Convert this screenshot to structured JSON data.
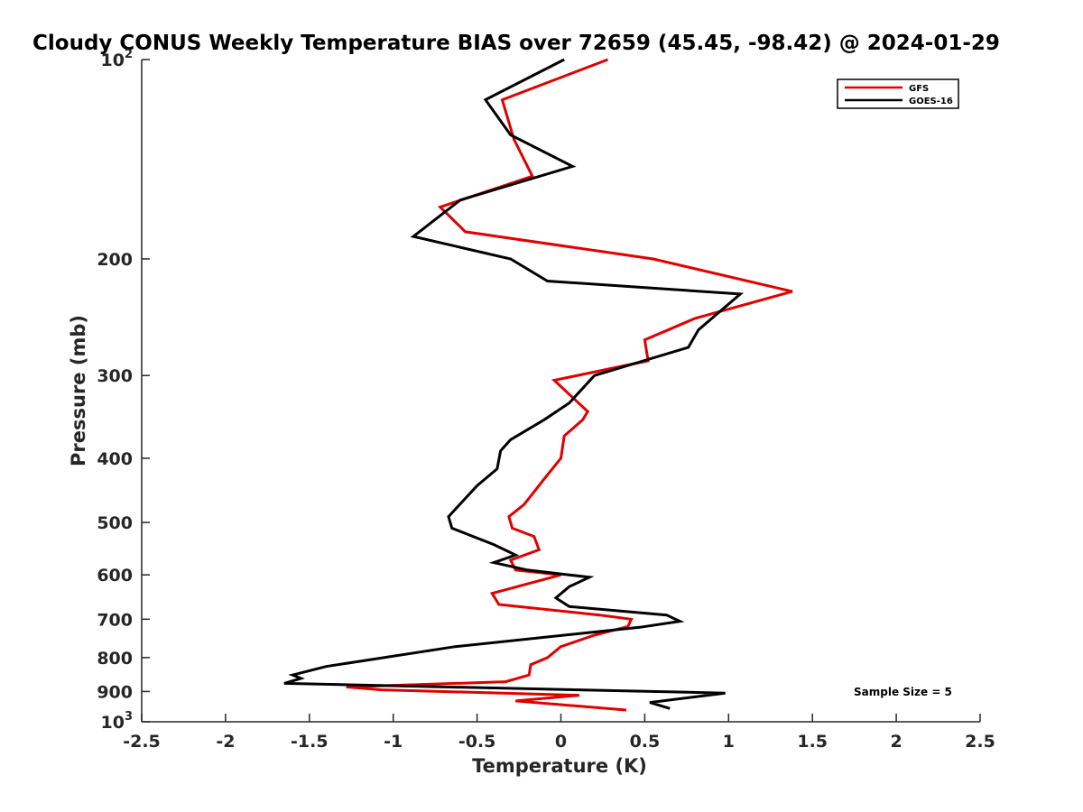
{
  "chart_data": {
    "type": "line",
    "title": "Cloudy CONUS Weekly Temperature BIAS over 72659 (45.45, -98.42) @ 2024-01-29",
    "xlabel": "Temperature (K)",
    "ylabel": "Pressure (mb)",
    "xlim": [
      -2.5,
      2.5
    ],
    "ylim": [
      100,
      1000
    ],
    "y_scale": "log",
    "y_reversed": true,
    "x_ticks": [
      "-2.5",
      "-2",
      "-1.5",
      "-1",
      "-0.5",
      "0",
      "0.5",
      "1",
      "1.5",
      "2",
      "2.5"
    ],
    "y_ticks": [
      {
        "value": 100,
        "label": "10",
        "sup": "2"
      },
      {
        "value": 200,
        "label": "200",
        "sup": ""
      },
      {
        "value": 300,
        "label": "300",
        "sup": ""
      },
      {
        "value": 400,
        "label": "400",
        "sup": ""
      },
      {
        "value": 500,
        "label": "500",
        "sup": ""
      },
      {
        "value": 600,
        "label": "600",
        "sup": ""
      },
      {
        "value": 700,
        "label": "700",
        "sup": ""
      },
      {
        "value": 800,
        "label": "800",
        "sup": ""
      },
      {
        "value": 900,
        "label": "900",
        "sup": ""
      },
      {
        "value": 1000,
        "label": "10",
        "sup": "3"
      }
    ],
    "grid": false,
    "legend_position": "top-right",
    "annotation": "Sample Size = 5",
    "series": [
      {
        "name": "GFS",
        "color": "#e00000",
        "x": [
          0.28,
          -0.35,
          -0.28,
          -0.17,
          -0.72,
          -0.57,
          0.55,
          1.38,
          0.8,
          0.5,
          0.52,
          -0.04,
          0.16,
          0.13,
          0.02,
          0.0,
          -0.1,
          -0.22,
          -0.31,
          -0.29,
          -0.16,
          -0.13,
          -0.3,
          -0.27,
          0.0,
          -0.41,
          -0.37,
          0.23,
          0.42,
          0.4,
          0.2,
          0.0,
          -0.08,
          -0.18,
          -0.19,
          -0.33,
          -1.28,
          -1.07,
          0.11,
          -0.27,
          0.39
        ],
        "y": [
          100,
          115,
          132,
          150,
          167,
          182,
          200,
          224,
          246,
          265,
          285,
          305,
          340,
          350,
          370,
          400,
          430,
          470,
          490,
          510,
          525,
          550,
          570,
          590,
          600,
          640,
          665,
          690,
          700,
          718,
          740,
          770,
          800,
          820,
          850,
          870,
          886,
          895,
          912,
          930,
          960
        ]
      },
      {
        "name": "GOES-16",
        "color": "#000000",
        "x": [
          0.02,
          -0.45,
          -0.3,
          0.07,
          -0.6,
          -0.88,
          -0.3,
          -0.08,
          1.07,
          0.82,
          0.76,
          0.2,
          0.05,
          -0.1,
          -0.3,
          -0.36,
          -0.38,
          -0.5,
          -0.67,
          -0.65,
          -0.4,
          -0.27,
          -0.4,
          -0.2,
          0.17,
          0.05,
          -0.03,
          0.05,
          0.63,
          0.71,
          0.47,
          -0.63,
          -1.4,
          -1.6,
          -1.55,
          -1.65,
          0.98,
          0.53,
          0.65
        ],
        "y": [
          100,
          115,
          130,
          145,
          163,
          185,
          200,
          216,
          226,
          256,
          272,
          300,
          330,
          350,
          375,
          390,
          415,
          440,
          490,
          510,
          540,
          560,
          575,
          590,
          605,
          625,
          650,
          670,
          690,
          705,
          720,
          770,
          825,
          850,
          860,
          875,
          905,
          935,
          955
        ]
      }
    ]
  }
}
